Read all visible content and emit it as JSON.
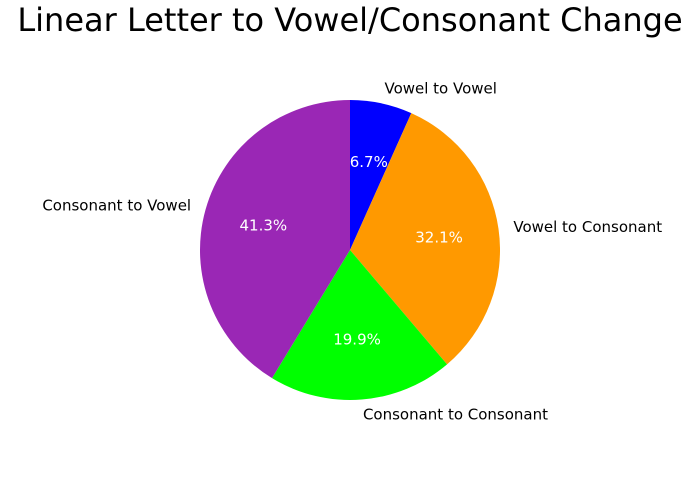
{
  "chart_data": {
    "type": "pie",
    "title": "Linear Letter to Vowel/Consonant Change",
    "start_angle_deg": 90,
    "direction": "clockwise",
    "slices": [
      {
        "label": "Vowel to Vowel",
        "value": 6.7,
        "pct_label": "6.7%",
        "color": "#0000ff"
      },
      {
        "label": "Vowel to Consonant",
        "value": 32.1,
        "pct_label": "32.1%",
        "color": "#ff9900"
      },
      {
        "label": "Consonant to Consonant",
        "value": 19.9,
        "pct_label": "19.9%",
        "color": "#00ff00"
      },
      {
        "label": "Consonant to Vowel",
        "value": 41.3,
        "pct_label": "41.3%",
        "color": "#9a27b5"
      }
    ]
  }
}
